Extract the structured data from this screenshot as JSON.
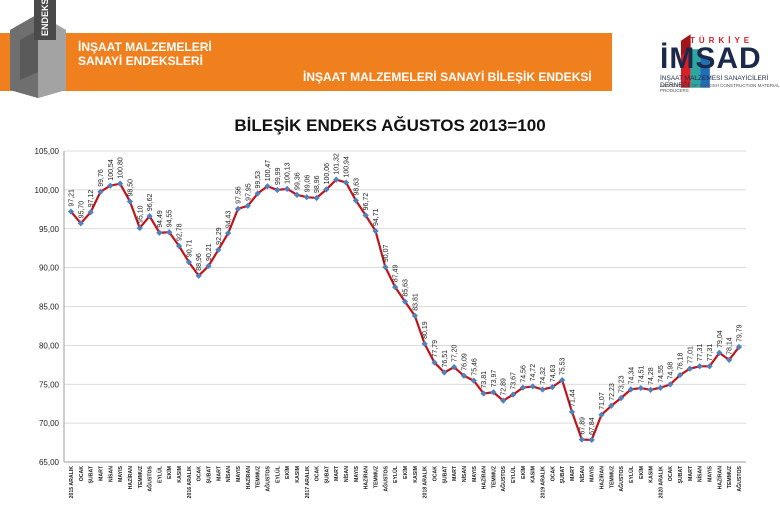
{
  "header": {
    "logo_text": "ENDEKS",
    "title_line1": "İNŞAAT MALZEMELERİ",
    "title_line2": "SANAYİ ENDEKSLERİ",
    "section_title": "İNŞAAT MALZEMELERİ SANAYİ BİLEŞİK ENDEKSİ"
  },
  "brand": {
    "country": "TÜRKİYE",
    "name": "İMSAD",
    "subtitle": "İNŞAAT MALZEMESİ SANAYİCİLERİ DERNEĞİ",
    "subtitle_en": "ASSOCIATION OF TURKISH CONSTRUCTION MATERIAL PRODUCERS"
  },
  "colors": {
    "line": "#c0141b",
    "marker": "#4f81bd",
    "orange": "#f07f1e",
    "grid": "#cfcfcf"
  },
  "chart_data": {
    "type": "line",
    "title": "BİLEŞİK ENDEKS AĞUSTOS 2013=100",
    "ylim": [
      65,
      105
    ],
    "yticks": [
      "65,00",
      "70,00",
      "75,00",
      "80,00",
      "85,00",
      "90,00",
      "95,00",
      "100,00",
      "105,00"
    ],
    "grid": true,
    "categories": [
      "2015 ARALIK",
      "OCAK",
      "ŞUBAT",
      "MART",
      "NİSAN",
      "MAYIS",
      "HAZİRAN",
      "TEMMUZ",
      "AĞUSTOS",
      "EYLÜL",
      "EKİM",
      "KASIM",
      "2016 ARALIK",
      "OCAK",
      "ŞUBAT",
      "MART",
      "NİSAN",
      "MAYIS",
      "HAZİRAN",
      "TEMMUZ",
      "AĞUSTOS",
      "EYLÜL",
      "EKİM",
      "KASIM",
      "2017 ARALIK",
      "OCAK",
      "ŞUBAT",
      "MART",
      "NİSAN",
      "MAYIS",
      "HAZİRAN",
      "TEMMUZ",
      "AĞUSTOS",
      "EYLÜL",
      "EKİM",
      "KASIM",
      "2018 ARALIK",
      "OCAK",
      "ŞUBAT",
      "MART",
      "NİSAN",
      "MAYIS",
      "HAZİRAN",
      "TEMMUZ",
      "AĞUSTOS",
      "EYLÜL",
      "EKİM",
      "KASIM",
      "2019 ARALIK",
      "OCAK",
      "ŞUBAT",
      "MART",
      "NİSAN",
      "MAYIS",
      "HAZİRAN",
      "TEMMUZ",
      "AĞUSTOS",
      "EYLÜL",
      "EKİM",
      "KASIM",
      "2020 ARALIK",
      "OCAK",
      "ŞUBAT",
      "MART",
      "NİSAN",
      "MAYIS",
      "HAZİRAN",
      "TEMMUZ",
      "AĞUSTOS"
    ],
    "values": [
      97.21,
      95.7,
      97.12,
      99.76,
      100.54,
      100.8,
      98.5,
      95.1,
      96.62,
      94.49,
      94.55,
      92.78,
      90.71,
      88.96,
      90.21,
      92.29,
      94.43,
      97.56,
      97.95,
      99.53,
      100.47,
      99.99,
      100.13,
      99.36,
      99.06,
      98.96,
      100.06,
      101.32,
      100.94,
      98.63,
      96.72,
      94.71,
      90.07,
      87.49,
      85.63,
      83.81,
      80.19,
      77.79,
      76.51,
      77.2,
      76.09,
      75.46,
      73.81,
      73.97,
      72.89,
      73.67,
      74.56,
      74.72,
      74.32,
      74.63,
      75.53,
      71.44,
      67.89,
      67.84,
      71.07,
      72.23,
      73.23,
      74.34,
      74.51,
      74.28,
      74.55,
      74.98,
      76.18,
      77.01,
      77.31,
      77.31,
      79.04,
      78.14,
      79.79
    ],
    "value_labels": [
      "97,21",
      "95,70",
      "97,12",
      "99,76",
      "100,54",
      "100,80",
      "98,50",
      "95,10",
      "96,62",
      "94,49",
      "94,55",
      "92,78",
      "90,71",
      "88,96",
      "90,21",
      "92,29",
      "94,43",
      "97,56",
      "97,95",
      "99,53",
      "100,47",
      "99,99",
      "100,13",
      "99,36",
      "99,06",
      "98,96",
      "100,06",
      "101,32",
      "100,94",
      "98,63",
      "96,72",
      "94,71",
      "90,07",
      "87,49",
      "85,63",
      "83,81",
      "80,19",
      "77,79",
      "76,51",
      "77,20",
      "76,09",
      "75,46",
      "73,81",
      "73,97",
      "72,89",
      "73,67",
      "74,56",
      "74,72",
      "74,32",
      "74,63",
      "75,53",
      "71,44",
      "67,89",
      "67,84",
      "71,07",
      "72,23",
      "73,23",
      "74,34",
      "74,51",
      "74,28",
      "74,55",
      "74,98",
      "76,18",
      "77,01",
      "77,31",
      "77,31",
      "79,04",
      "78,14",
      "79,79"
    ]
  }
}
